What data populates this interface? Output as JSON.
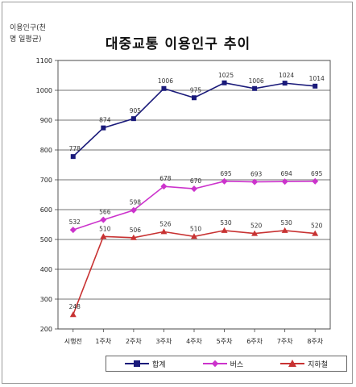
{
  "header": {
    "unit_line1": "이용인구(천",
    "unit_line2": "명 일평균)",
    "title": "대중교통 이용인구 추이"
  },
  "chart_data": {
    "type": "line",
    "title": "대중교통 이용인구 추이",
    "ylabel": "이용인구(천 명 일평균)",
    "categories": [
      "시행전",
      "1주차",
      "2주차",
      "3주차",
      "4주차",
      "5주차",
      "6주차",
      "7주차",
      "8주차"
    ],
    "ylim": [
      200,
      1100
    ],
    "yticks": [
      200,
      300,
      400,
      500,
      600,
      700,
      800,
      900,
      1000,
      1100
    ],
    "grid": true,
    "legend_position": "bottom",
    "series": [
      {
        "name": "합계",
        "color": "#1a1a7a",
        "marker": "square",
        "values": [
          778,
          874,
          905,
          1006,
          975,
          1025,
          1006,
          1024,
          1014
        ],
        "labels": [
          "778",
          "874",
          "905",
          "1006",
          "975",
          "1025",
          "1006",
          "1024",
          "1014"
        ]
      },
      {
        "name": "버스",
        "color": "#cc33cc",
        "marker": "diamond",
        "values": [
          532,
          566,
          598,
          678,
          670,
          695,
          693,
          694,
          695
        ],
        "labels": [
          "532",
          "566",
          "598",
          "678",
          "670",
          "695",
          "693",
          "694",
          "695"
        ]
      },
      {
        "name": "지하철",
        "color": "#c83232",
        "marker": "triangle",
        "values": [
          248,
          510,
          506,
          526,
          510,
          530,
          520,
          530,
          520
        ],
        "labels": [
          "248",
          "510",
          "506",
          "526",
          "510",
          "530",
          "520",
          "530",
          "520"
        ]
      }
    ]
  }
}
